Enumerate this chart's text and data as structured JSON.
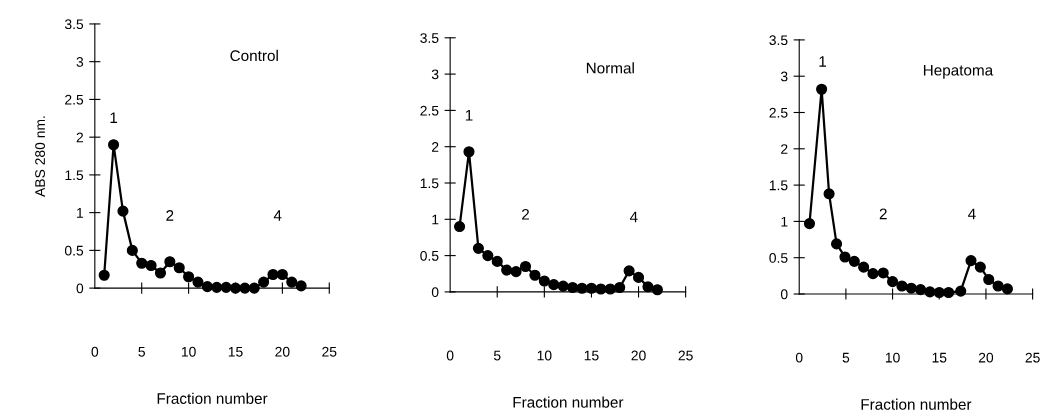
{
  "chart_data": [
    {
      "type": "line",
      "title": "Control",
      "xlabel": "Fraction number",
      "ylabel": "ABS 280 nm.",
      "xlim": [
        0,
        25
      ],
      "xticks": [
        0,
        5,
        10,
        15,
        20,
        25
      ],
      "ylim": [
        0,
        3.5
      ],
      "yticks": [
        0,
        0.5,
        1,
        1.5,
        2,
        2.5,
        3,
        3.5
      ],
      "grid": false,
      "marker": "circle",
      "line_style": "solid",
      "annotations": [
        "1",
        "2",
        "4"
      ],
      "series": [
        {
          "color": "#000000",
          "x": [
            1,
            2,
            3,
            4,
            5,
            6,
            7,
            8,
            9,
            10,
            11,
            12,
            13,
            14,
            15,
            16,
            17,
            18,
            19,
            20,
            21,
            22
          ],
          "values": [
            0.17,
            1.9,
            1.02,
            0.5,
            0.33,
            0.3,
            0.2,
            0.35,
            0.27,
            0.15,
            0.08,
            0.02,
            0.01,
            0.01,
            0,
            0,
            0,
            0.08,
            0.18,
            0.18,
            0.08,
            0.03
          ]
        }
      ]
    },
    {
      "type": "line",
      "title": "Normal",
      "xlabel": "Fraction number",
      "xlim": [
        0,
        25
      ],
      "xticks": [
        0,
        5,
        10,
        15,
        20,
        25
      ],
      "ylim": [
        0,
        3.5
      ],
      "yticks": [
        0,
        0.5,
        1,
        1.5,
        2,
        2.5,
        3,
        3.5
      ],
      "grid": false,
      "marker": "circle",
      "line_style": "solid",
      "annotations": [
        "1",
        "2",
        "4"
      ],
      "series": [
        {
          "color": "#000000",
          "x": [
            1,
            2,
            3,
            4,
            5,
            6,
            7,
            8,
            9,
            10,
            11,
            12,
            13,
            14,
            15,
            16,
            17,
            18,
            19,
            20,
            21,
            22
          ],
          "values": [
            0.9,
            1.93,
            0.6,
            0.5,
            0.42,
            0.3,
            0.28,
            0.35,
            0.23,
            0.15,
            0.1,
            0.08,
            0.06,
            0.05,
            0.05,
            0.04,
            0.04,
            0.06,
            0.29,
            0.2,
            0.07,
            0.03
          ]
        }
      ]
    },
    {
      "type": "line",
      "title": "Hepatoma",
      "xlabel": "Fraction number",
      "xlim": [
        0,
        25
      ],
      "xticks": [
        0,
        5,
        10,
        15,
        20,
        25
      ],
      "ylim": [
        0,
        3.5
      ],
      "yticks": [
        0,
        0.5,
        1,
        1.5,
        2,
        2.5,
        3,
        3.5
      ],
      "grid": false,
      "marker": "circle",
      "line_style": "solid",
      "annotations": [
        "1",
        "2",
        "4"
      ],
      "series": [
        {
          "color": "#000000",
          "x": [
            1.1,
            2.4,
            3.2,
            4,
            4.9,
            5.9,
            6.9,
            7.9,
            9,
            10,
            11,
            12,
            13,
            14,
            15,
            16,
            17.3,
            18.4,
            19.4,
            20.3,
            21.3,
            22.3
          ],
          "values": [
            0.97,
            2.82,
            1.38,
            0.69,
            0.51,
            0.45,
            0.37,
            0.28,
            0.29,
            0.17,
            0.11,
            0.08,
            0.06,
            0.03,
            0.02,
            0.02,
            0.04,
            0.46,
            0.37,
            0.2,
            0.11,
            0.07
          ]
        }
      ]
    }
  ]
}
